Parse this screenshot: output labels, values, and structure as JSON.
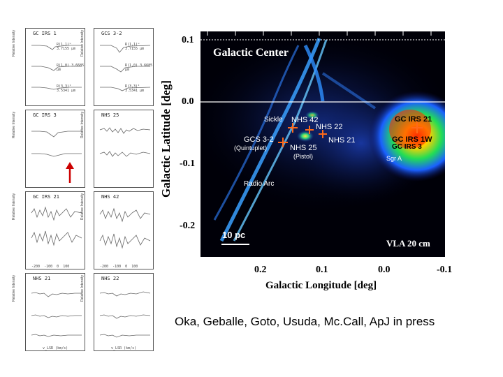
{
  "spectra": {
    "panels": [
      {
        "title": "GC IRS 1",
        "lines": [
          "R(1,1)ᵘ 3.7155 μm",
          "R(1,0) 3.6685 μm",
          "R(3,3)ᴵ 3.5341 μm"
        ]
      },
      {
        "title": "GCS 3-2",
        "lines": [
          "R(1,1)ᵘ 3.7155 μm",
          "R(1,0) 3.6685 μm",
          "R(3,3)ᴵ 3.5341 μm"
        ]
      },
      {
        "title": "GC IRS 3",
        "lines": []
      },
      {
        "title": "NHS 25",
        "lines": []
      },
      {
        "title": "GC IRS 21",
        "lines": []
      },
      {
        "title": "NHS 42",
        "lines": []
      },
      {
        "title": "NHS 21",
        "lines": []
      },
      {
        "title": "NHS 22",
        "lines": []
      }
    ],
    "ylabel": "Relative Intensity",
    "xlabel": "v_LSR (km/s)",
    "xticks": [
      "-200",
      "-100",
      "0",
      "100"
    ]
  },
  "map": {
    "title": "Galactic Center",
    "scale_bar": "10 pc",
    "survey": "VLA 20 cm",
    "ylabel": "Galactic Latitude [deg]",
    "xlabel": "Galactic Longitude [deg]",
    "yticks": [
      "0.1",
      "0.0",
      "-0.1",
      "-0.2"
    ],
    "xticks": [
      "0.2",
      "0.1",
      "0.0",
      "-0.1"
    ],
    "labels": {
      "sickle": "Sickle",
      "nhs42": "NHS 42",
      "nhs22": "NHS 22",
      "gcs32": "GCS 3-2",
      "quintuplet": "(Quintuplet)",
      "nhs25": "NHS 25",
      "pistol": "(Pistol)",
      "nhs21": "NHS 21",
      "irs21": "GC IRS 21",
      "irs1w": "GC IRS 1W",
      "irs3": "GC IRS 3",
      "sgra": "Sgr A",
      "radioarc": "Radio Arc"
    }
  },
  "caption": "Oka, Geballe, Goto, Usuda, Mc.Call, ApJ in  press",
  "colors": {
    "marker": "#ff6a1a",
    "arrow": "#cc0000",
    "filament": "#3aa0ff"
  }
}
